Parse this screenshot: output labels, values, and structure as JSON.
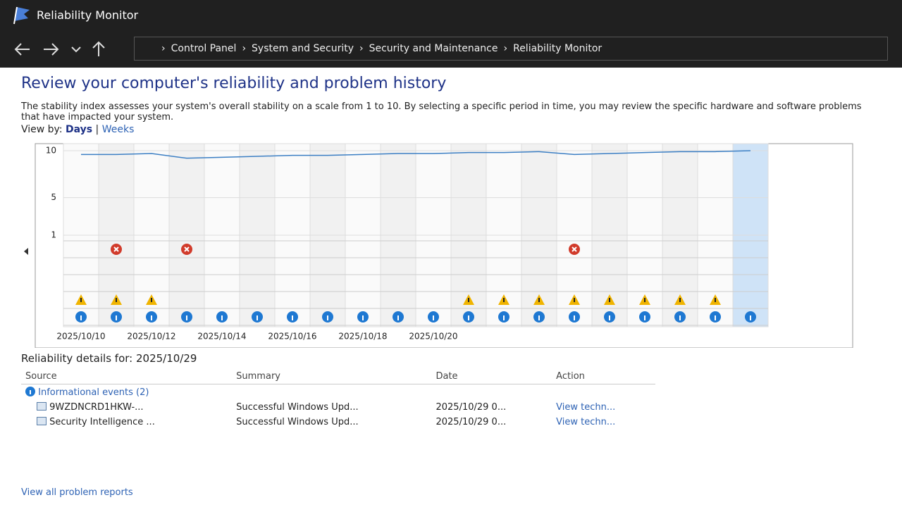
{
  "window": {
    "title": "Reliability Monitor"
  },
  "breadcrumb": [
    "Control Panel",
    "System and Security",
    "Security and Maintenance",
    "Reliability Monitor"
  ],
  "heading": "Review your computer's reliability and problem history",
  "description": "The stability index assesses your system's overall stability on a scale from 1 to 10. By selecting a specific period in time, you may review the specific hardware and software problems that have impacted your system.",
  "view_by": {
    "label": "View by:",
    "days": "Days",
    "weeks": "Weeks"
  },
  "chart": {
    "type": "line",
    "categories": [
      "2025/10/10",
      null,
      "2025/10/12",
      null,
      "2025/10/14",
      null,
      "2025/10/16",
      null,
      "2025/10/18",
      null,
      "2025/10/20",
      null,
      null,
      null,
      null,
      null,
      null,
      null,
      null,
      null
    ],
    "values": [
      9.6,
      9.6,
      9.7,
      9.2,
      9.3,
      9.4,
      9.5,
      9.5,
      9.6,
      9.7,
      9.7,
      9.8,
      9.8,
      9.9,
      9.6,
      9.7,
      9.8,
      9.9,
      9.9,
      10
    ],
    "events": [
      [
        "warning",
        "info"
      ],
      [
        "error",
        "warning",
        "info"
      ],
      [
        "warning",
        "info"
      ],
      [
        "error",
        "info"
      ],
      [
        "info"
      ],
      [
        "info"
      ],
      [
        "info"
      ],
      [
        "info"
      ],
      [
        "info"
      ],
      [
        "info"
      ],
      [
        "info"
      ],
      [
        "warning",
        "info"
      ],
      [
        "warning",
        "info"
      ],
      [
        "warning",
        "info"
      ],
      [
        "error",
        "warning",
        "info"
      ],
      [
        "warning",
        "info"
      ],
      [
        "warning",
        "info"
      ],
      [
        "warning",
        "info"
      ],
      [
        "warning",
        "info"
      ],
      [
        "info"
      ]
    ],
    "selected": 19,
    "ylim": [
      1,
      10
    ],
    "yticks": [
      10,
      5,
      1
    ],
    "color": "#3c7fc4"
  },
  "details": {
    "title": "Reliability details for: 2025/10/29",
    "columns": [
      "Source",
      "Summary",
      "Date",
      "Action"
    ],
    "group": "Informational events (2)",
    "rows": [
      [
        "9WZDNCRD1HKW-...",
        "Successful Windows Upd...",
        "2025/10/29 0...",
        "View techn..."
      ],
      [
        "Security Intelligence ...",
        "Successful Windows Upd...",
        "2025/10/29 0...",
        "View techn..."
      ]
    ],
    "footer": "View all problem reports"
  }
}
